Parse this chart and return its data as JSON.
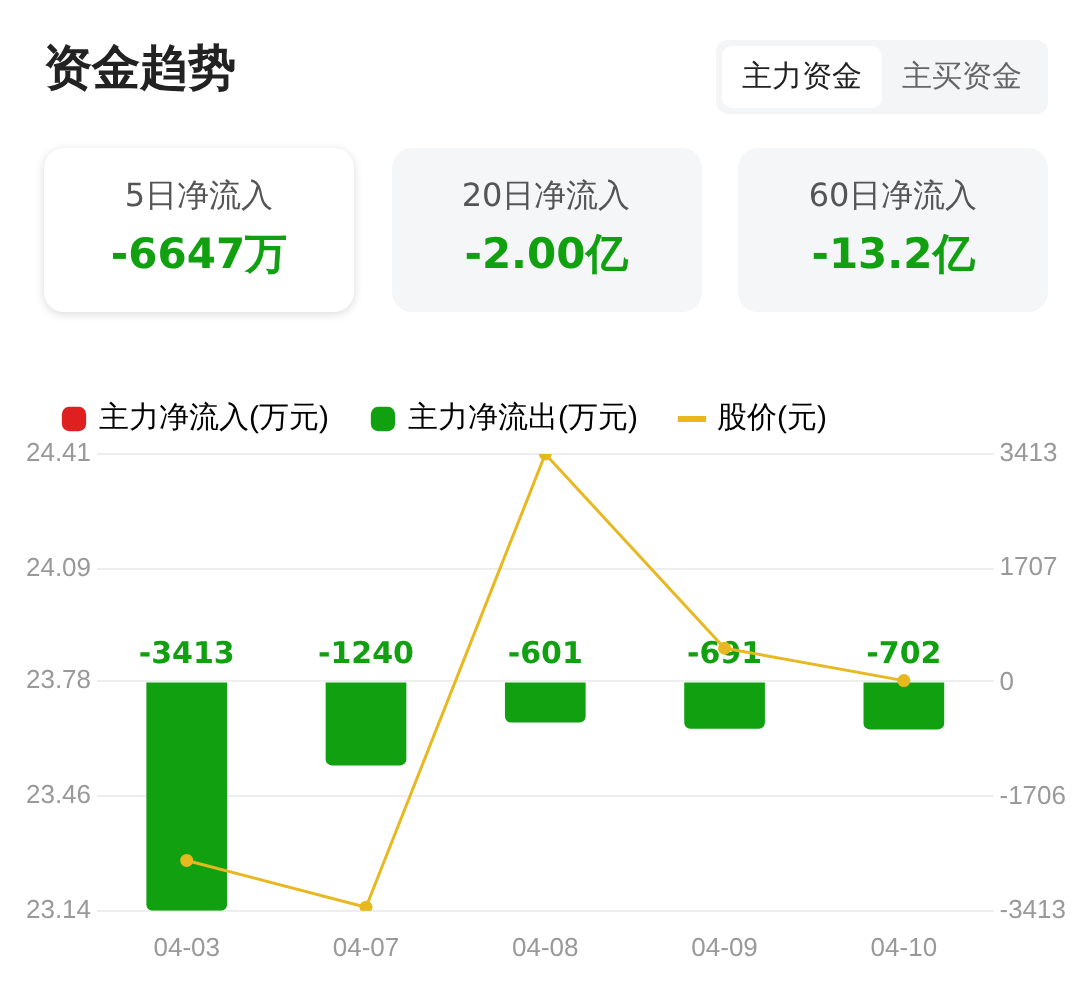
{
  "chart_data": {
    "type": "bar",
    "title": "资金趋势",
    "annotations": [
      "主力资金",
      "主买资金",
      "5日净流入",
      "-6647万",
      "20日净流入",
      "-2.00亿",
      "60日净流入",
      "-13.2亿"
    ],
    "categories": [
      "04-03",
      "04-07",
      "04-08",
      "04-09",
      "04-10"
    ],
    "series": [
      {
        "name": "主力净流入(万元)",
        "color": "#e02020",
        "axis": "y2",
        "values": [
          null,
          null,
          null,
          null,
          null
        ]
      },
      {
        "name": "主力净流出(万元)",
        "color": "#10a010",
        "axis": "y2",
        "values": [
          -3413,
          -1240,
          -601,
          -691,
          -702
        ],
        "value_labels": [
          "-3413",
          "-1240",
          "-601",
          "-691",
          "-702"
        ]
      },
      {
        "name": "股价(元)",
        "type": "line",
        "color": "#e8b820",
        "marker": "circle",
        "values": [
          23.28,
          23.15,
          24.41,
          23.87,
          23.78
        ]
      }
    ],
    "ylim": [
      23.14,
      24.41
    ],
    "yticks": [
      23.14,
      23.46,
      23.78,
      24.09,
      24.41
    ],
    "y2lim": [
      -3413,
      3413
    ],
    "y2ticks": [
      -3413,
      -1706,
      0,
      1707,
      3413
    ],
    "grid": "y",
    "legend": "top left"
  }
}
